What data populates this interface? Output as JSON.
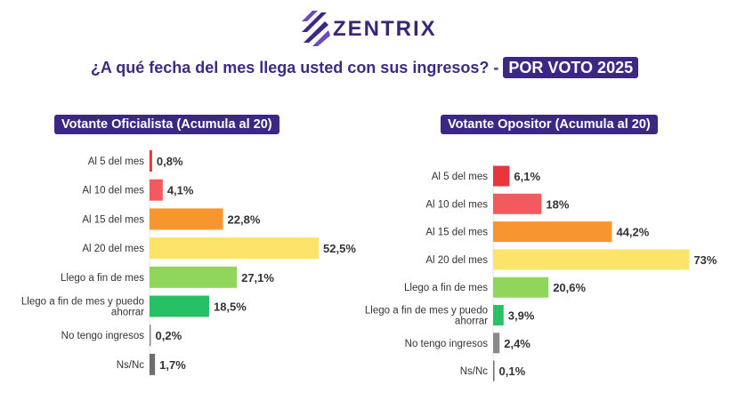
{
  "brand": {
    "name": "ZENTRIX",
    "colors": {
      "primary": "#3d2785"
    }
  },
  "heading": {
    "question": "¿A qué fecha del mes llega usted con sus ingresos?",
    "separator": "-",
    "tag": "POR VOTO 2025"
  },
  "chart_data": [
    {
      "type": "bar",
      "orientation": "horizontal",
      "title": "Votante Oficialista (Acumula al 20)",
      "categories": [
        "Al 5 del mes",
        "Al 10 del mes",
        "Al 15 del mes",
        "Al 20 del mes",
        "Llego a fin de mes",
        "Llego a fin de mes y puedo ahorrar",
        "No tengo ingresos",
        "Ns/Nc"
      ],
      "values": [
        0.8,
        4.1,
        22.8,
        52.5,
        27.1,
        18.5,
        0.2,
        1.7
      ],
      "labels": [
        "0,8%",
        "4,1%",
        "22,8%",
        "52,5%",
        "27,1%",
        "18,5%",
        "0,2%",
        "1,7%"
      ],
      "colors": [
        "#e8363c",
        "#f25a5f",
        "#f7952f",
        "#fce36a",
        "#8fd65a",
        "#27c065",
        "#8a8a8a",
        "#6e6e6e"
      ]
    },
    {
      "type": "bar",
      "orientation": "horizontal",
      "title": "Votante Opositor (Acumula al 20)",
      "categories": [
        "Al 5 del mes",
        "Al 10 del mes",
        "Al 15 del mes",
        "Al 20 del mes",
        "Llego a fin de mes",
        "Llego a fin de mes y puedo ahorrar",
        "No tengo ingresos",
        "Ns/Nc"
      ],
      "values": [
        6.1,
        18,
        44.2,
        73,
        20.6,
        3.9,
        2.4,
        0.1
      ],
      "labels": [
        "6,1%",
        "18%",
        "44,2%",
        "73%",
        "20,6%",
        "3,9%",
        "2,4%",
        "0,1%"
      ],
      "colors": [
        "#e8363c",
        "#f25a5f",
        "#f7952f",
        "#fce36a",
        "#8fd65a",
        "#27c065",
        "#8a8a8a",
        "#6e6e6e"
      ]
    }
  ]
}
